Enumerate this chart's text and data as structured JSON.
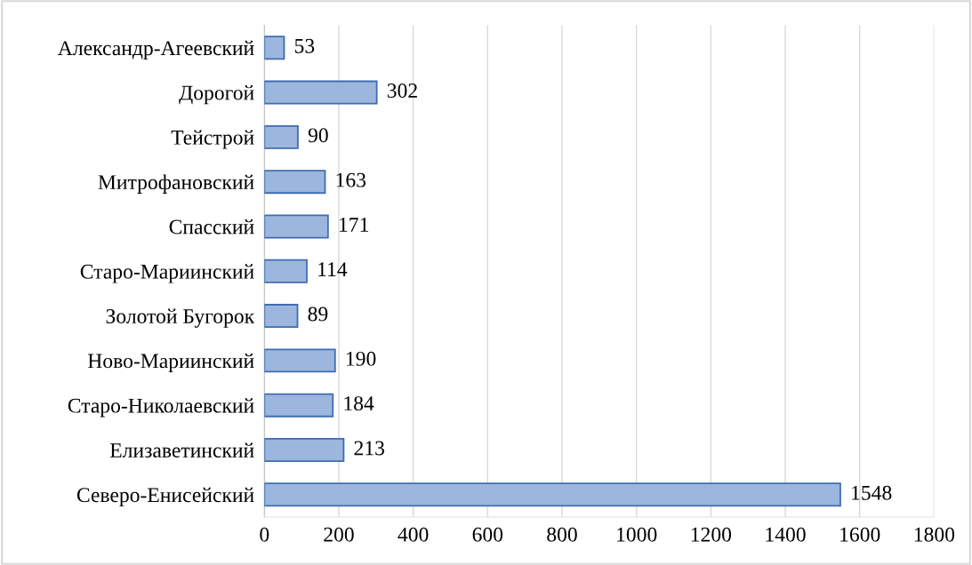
{
  "chart_data": {
    "type": "bar",
    "orientation": "horizontal",
    "categories": [
      "Александр-Агеевский",
      "Дорогой",
      "Тейстрой",
      "Митрофановский",
      "Спасский",
      "Старо-Мариинский",
      "Золотой Бугорок",
      "Ново-Мариинский",
      "Старо-Николаевский",
      "Елизаветинский",
      "Северо-Енисейский"
    ],
    "values": [
      53,
      302,
      90,
      163,
      171,
      114,
      89,
      190,
      184,
      213,
      1548
    ],
    "color": "#9db6dd",
    "xlim": [
      0,
      1800
    ],
    "xticks": [
      0,
      200,
      400,
      600,
      800,
      1000,
      1200,
      1400,
      1600,
      1800
    ],
    "grid": "x",
    "data_labels": true
  }
}
